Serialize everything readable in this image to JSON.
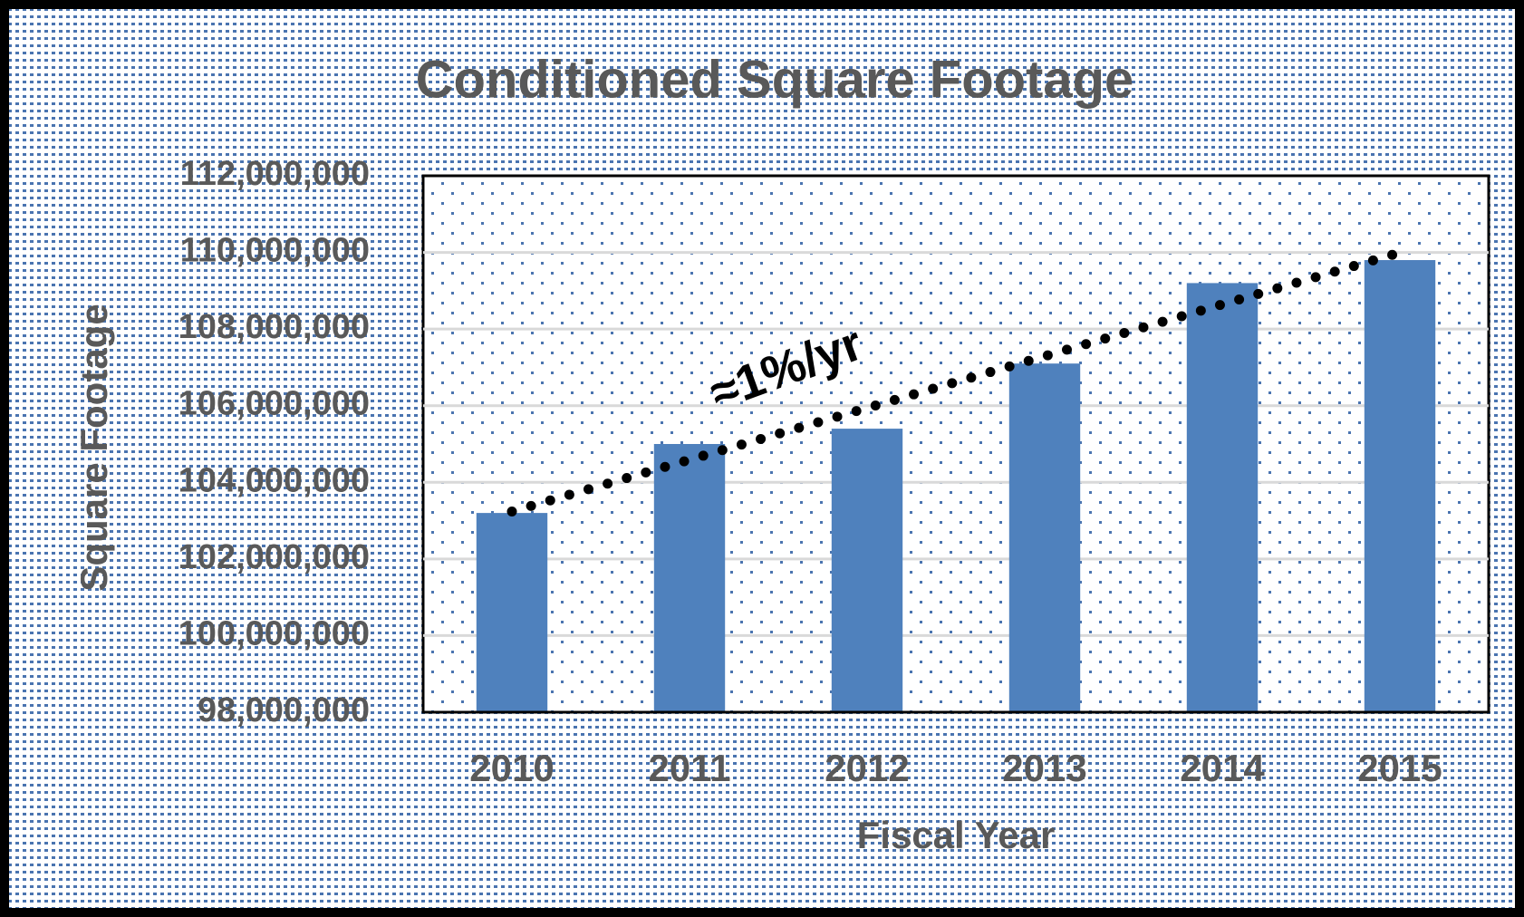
{
  "chart_data": {
    "type": "bar",
    "title": "Conditioned Square Footage",
    "x_label": "Fiscal Year",
    "y_label": "Square Footage",
    "annotation": "≈1%/yr",
    "categories": [
      "2010",
      "2011",
      "2012",
      "2013",
      "2014",
      "2015"
    ],
    "values": [
      103200000,
      105000000,
      105400000,
      107100000,
      109200000,
      109800000
    ],
    "color": "#4f81bd",
    "ylim": [
      98000000,
      112000000
    ],
    "yticks": [
      {
        "value": 98000000,
        "label": "98,000,000"
      },
      {
        "value": 100000000,
        "label": "100,000,000"
      },
      {
        "value": 102000000,
        "label": "102,000,000"
      },
      {
        "value": 104000000,
        "label": "104,000,000"
      },
      {
        "value": 106000000,
        "label": "106,000,000"
      },
      {
        "value": 108000000,
        "label": "108,000,000"
      },
      {
        "value": 110000000,
        "label": "110,000,000"
      },
      {
        "value": 112000000,
        "label": "112,000,000"
      }
    ],
    "grid": true,
    "trendline": "linear"
  }
}
